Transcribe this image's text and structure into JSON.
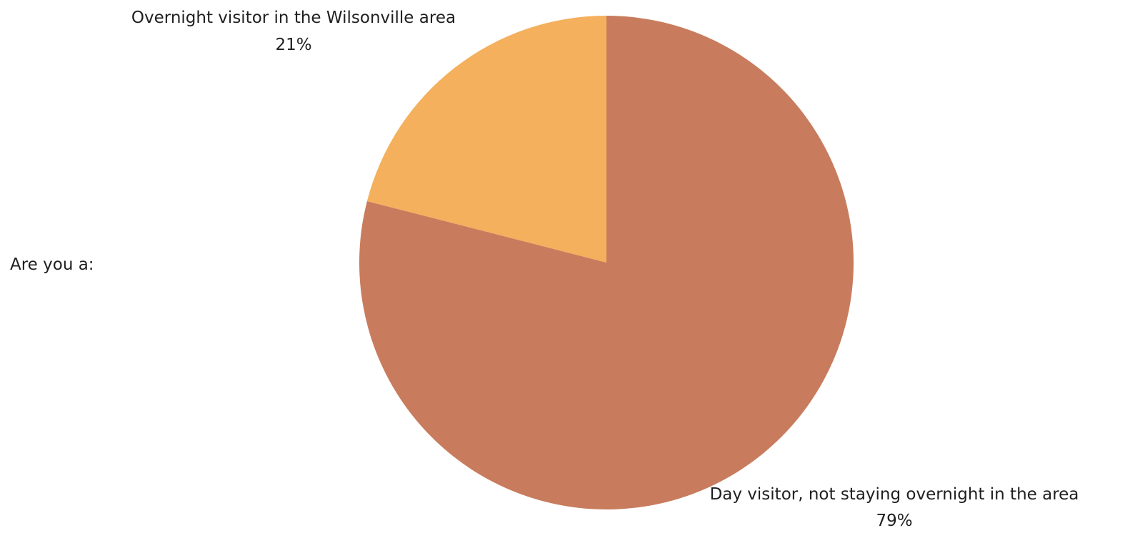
{
  "chart_data": {
    "type": "pie",
    "title": "Are you a:",
    "slices": [
      {
        "label": "Overnight visitor in the Wilsonville area",
        "value": 21,
        "value_label": "21%",
        "color": "#f4b05d"
      },
      {
        "label": "Day visitor, not staying overnight in the area",
        "value": 79,
        "value_label": "79%",
        "color": "#c87c5d"
      }
    ],
    "legend": "none",
    "label_placement": "outside"
  }
}
